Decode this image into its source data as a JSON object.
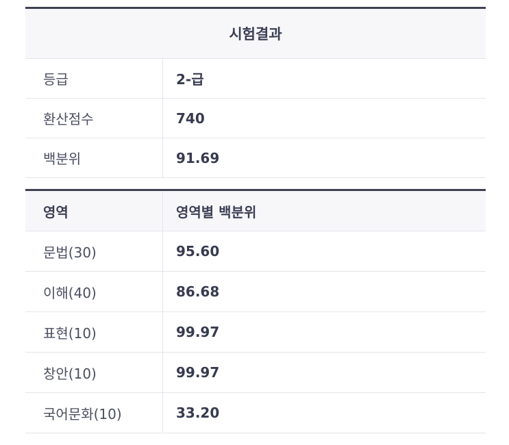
{
  "result_table": {
    "title": "시험결과",
    "rows": [
      {
        "label": "등급",
        "value": "2-급"
      },
      {
        "label": "환산점수",
        "value": "740"
      },
      {
        "label": "백분위",
        "value": "91.69"
      }
    ]
  },
  "area_table": {
    "headers": [
      "영역",
      "영역별 백분위"
    ],
    "rows": [
      {
        "label": "문법(30)",
        "value": "95.60"
      },
      {
        "label": "이해(40)",
        "value": "86.68"
      },
      {
        "label": "표현(10)",
        "value": "99.97"
      },
      {
        "label": "창안(10)",
        "value": "99.97"
      },
      {
        "label": "국어문화(10)",
        "value": "33.20"
      }
    ]
  }
}
